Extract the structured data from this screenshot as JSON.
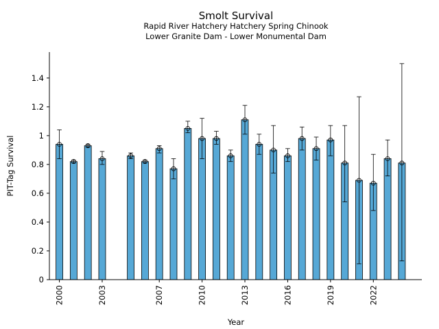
{
  "chart_data": {
    "type": "bar",
    "title": "Smolt Survival",
    "subtitle_lines": [
      "Rapid River Hatchery Hatchery Spring Chinook",
      "Lower Granite Dam - Lower Monumental Dam"
    ],
    "xlabel": "Year",
    "ylabel": "PIT-Tag Survival",
    "ylim": [
      0,
      1.58
    ],
    "xlim": [
      1999.3,
      2025.4
    ],
    "x_ticks": [
      2000,
      2003,
      2007,
      2010,
      2013,
      2016,
      2019,
      2022
    ],
    "y_ticks": [
      {
        "value": 0,
        "label": "0"
      },
      {
        "value": 0.2,
        "label": "0.2"
      },
      {
        "value": 0.4,
        "label": "0.4"
      },
      {
        "value": 0.6,
        "label": "0.6"
      },
      {
        "value": 0.8,
        "label": "0.8"
      },
      {
        "value": 1.0,
        "label": "1"
      },
      {
        "value": 1.2,
        "label": "1.2"
      },
      {
        "value": 1.4,
        "label": "1.4"
      }
    ],
    "bar_color": "#56a8d6",
    "edge_color": "#000000",
    "grid": false,
    "points": [
      {
        "year": 2000,
        "value": 0.94,
        "lower": 0.84,
        "upper": 1.04
      },
      {
        "year": 2001,
        "value": 0.82,
        "lower": 0.81,
        "upper": 0.83
      },
      {
        "year": 2002,
        "value": 0.93,
        "lower": 0.92,
        "upper": 0.94
      },
      {
        "year": 2003,
        "value": 0.84,
        "lower": 0.8,
        "upper": 0.89
      },
      {
        "year": 2005,
        "value": 0.86,
        "lower": 0.84,
        "upper": 0.88
      },
      {
        "year": 2006,
        "value": 0.82,
        "lower": 0.81,
        "upper": 0.83
      },
      {
        "year": 2007,
        "value": 0.91,
        "lower": 0.88,
        "upper": 0.93
      },
      {
        "year": 2008,
        "value": 0.77,
        "lower": 0.7,
        "upper": 0.84
      },
      {
        "year": 2009,
        "value": 1.05,
        "lower": 1.02,
        "upper": 1.1
      },
      {
        "year": 2010,
        "value": 0.98,
        "lower": 0.84,
        "upper": 1.12
      },
      {
        "year": 2011,
        "value": 0.98,
        "lower": 0.94,
        "upper": 1.03
      },
      {
        "year": 2012,
        "value": 0.86,
        "lower": 0.82,
        "upper": 0.9
      },
      {
        "year": 2013,
        "value": 1.11,
        "lower": 1.01,
        "upper": 1.21
      },
      {
        "year": 2014,
        "value": 0.94,
        "lower": 0.87,
        "upper": 1.01
      },
      {
        "year": 2015,
        "value": 0.9,
        "lower": 0.74,
        "upper": 1.07
      },
      {
        "year": 2016,
        "value": 0.86,
        "lower": 0.82,
        "upper": 0.91
      },
      {
        "year": 2017,
        "value": 0.98,
        "lower": 0.9,
        "upper": 1.06
      },
      {
        "year": 2018,
        "value": 0.91,
        "lower": 0.83,
        "upper": 0.99
      },
      {
        "year": 2019,
        "value": 0.97,
        "lower": 0.86,
        "upper": 1.07
      },
      {
        "year": 2020,
        "value": 0.81,
        "lower": 0.54,
        "upper": 1.07
      },
      {
        "year": 2021,
        "value": 0.69,
        "lower": 0.11,
        "upper": 1.27
      },
      {
        "year": 2022,
        "value": 0.67,
        "lower": 0.48,
        "upper": 0.87
      },
      {
        "year": 2023,
        "value": 0.84,
        "lower": 0.72,
        "upper": 0.97
      },
      {
        "year": 2024,
        "value": 0.81,
        "lower": 0.13,
        "upper": 1.5
      }
    ]
  }
}
